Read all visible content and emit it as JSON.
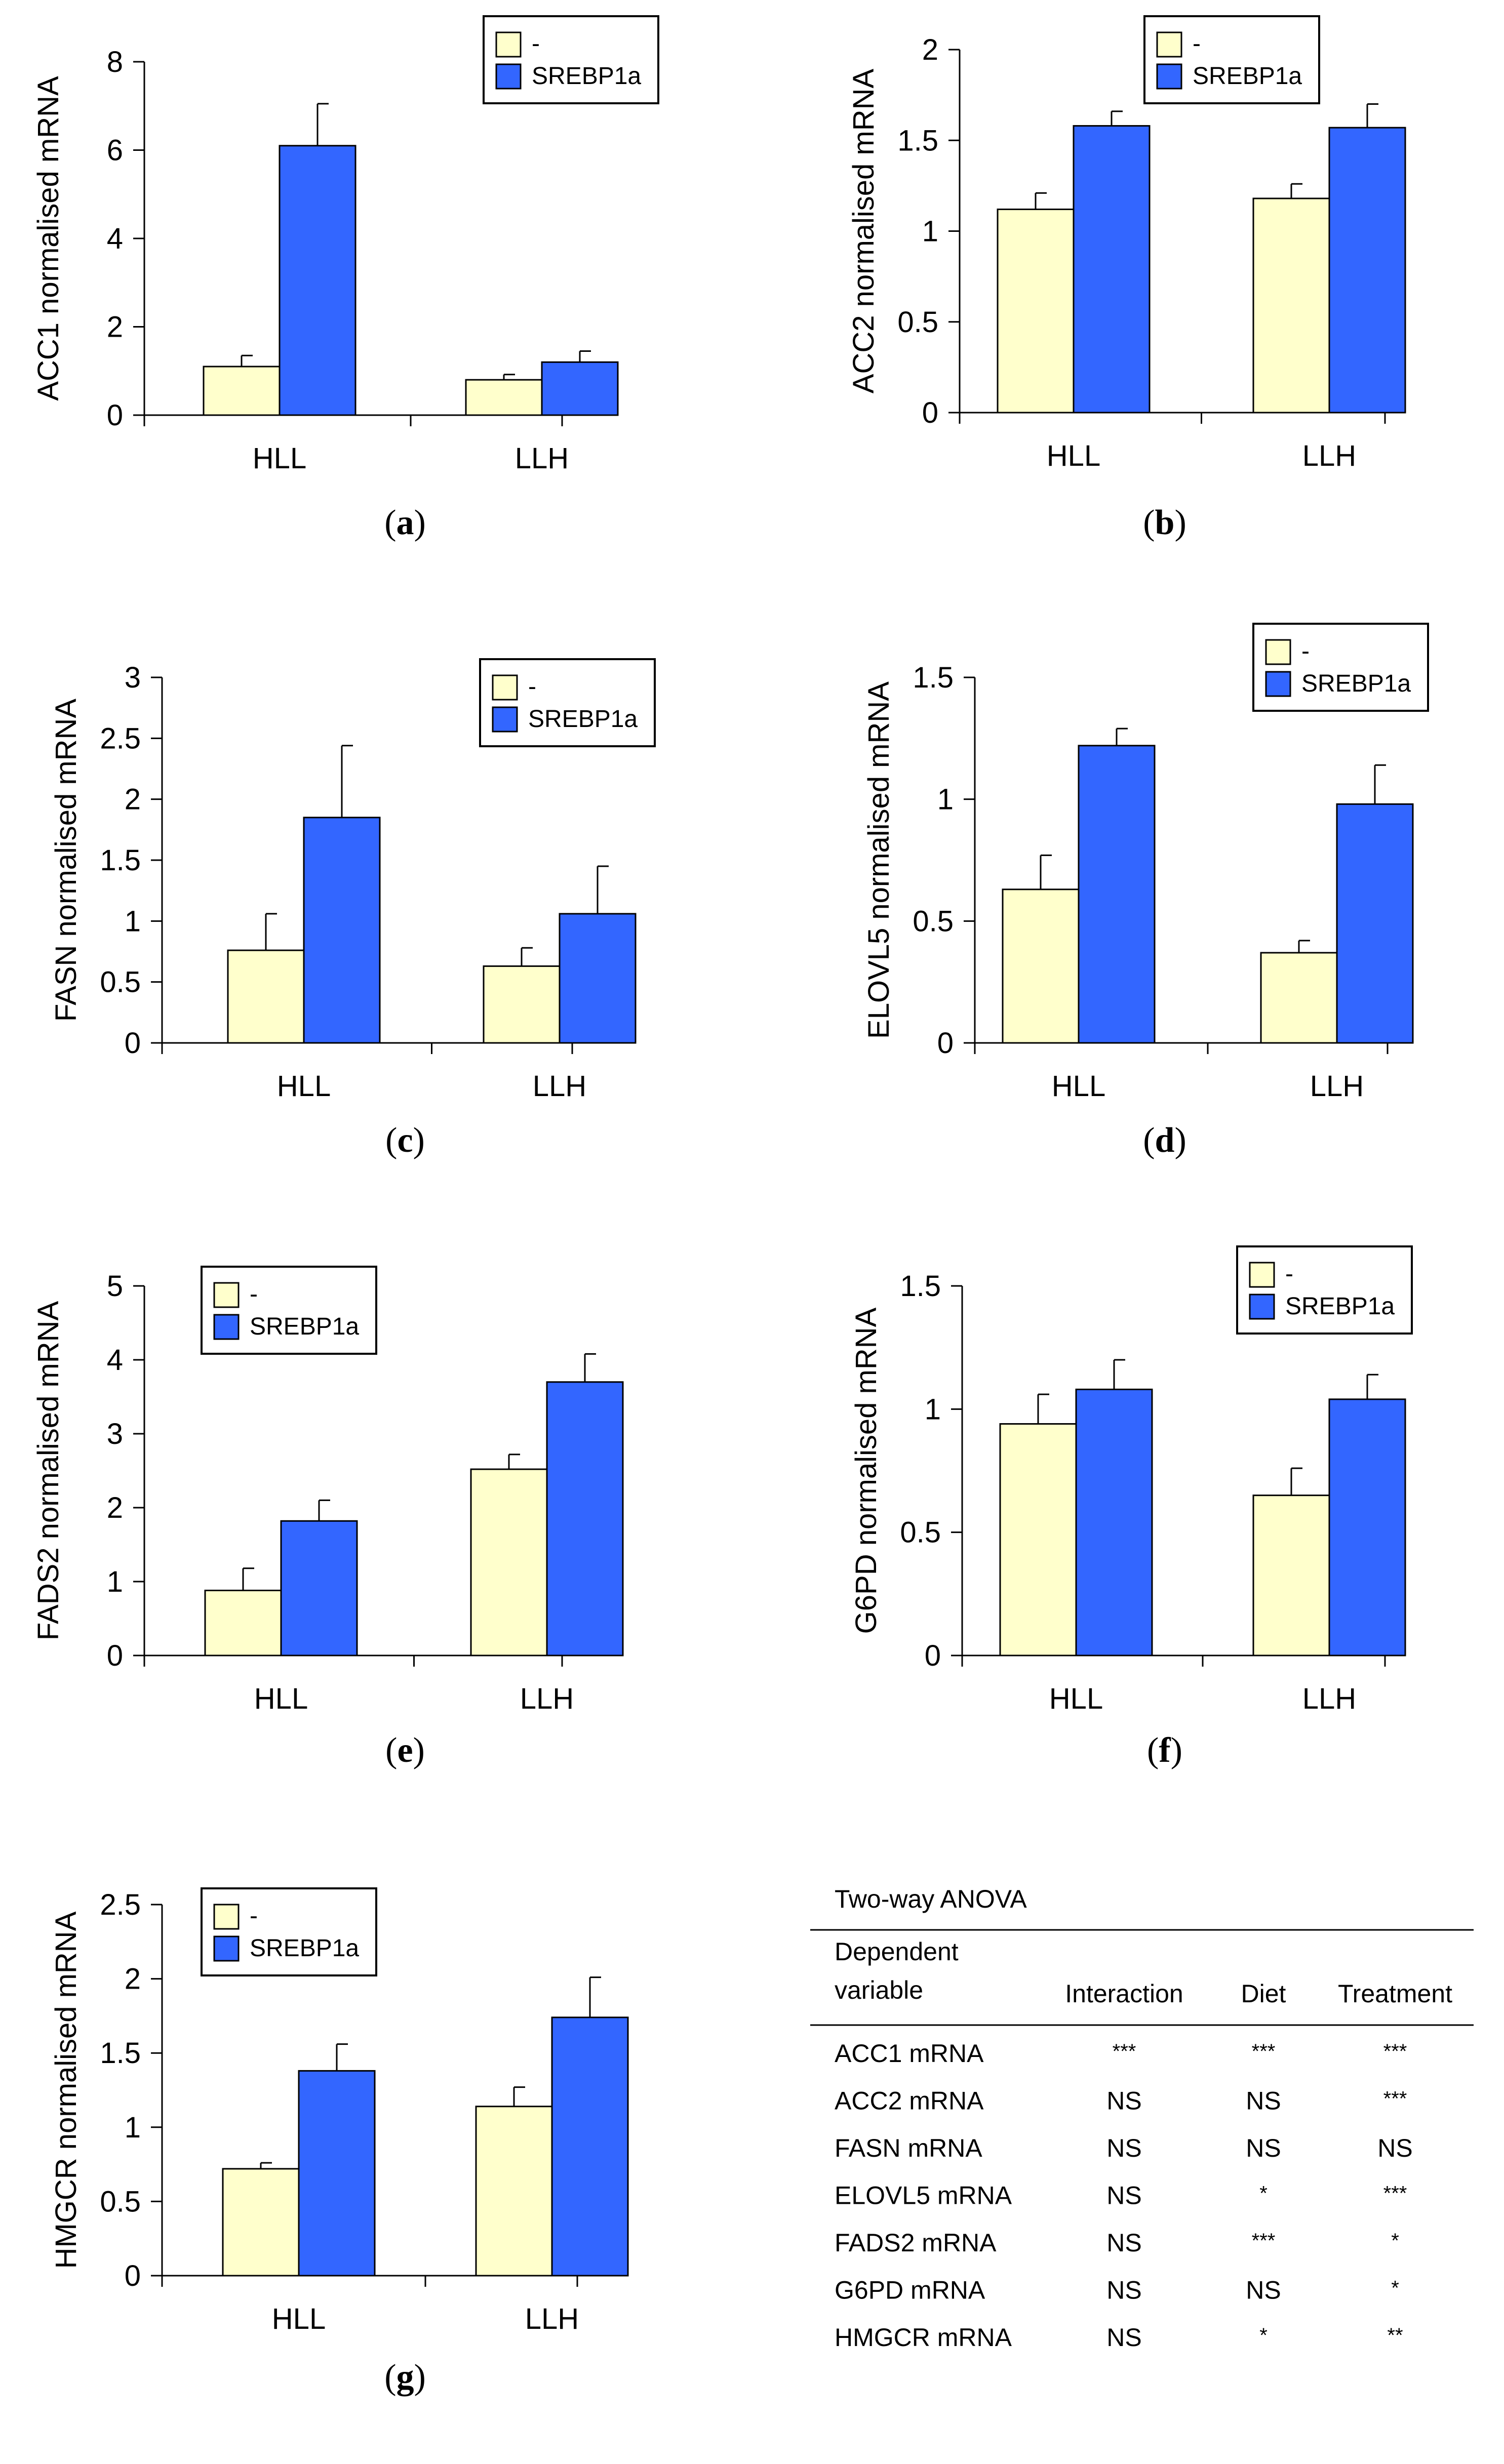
{
  "legend": {
    "control_label": "-",
    "treatment_label": "SREBP1a"
  },
  "colors": {
    "control": "#FFFFCC",
    "treatment": "#3366FF",
    "axis": "#000000"
  },
  "chart_data": [
    {
      "id": "a",
      "panel_label": "a",
      "type": "bar",
      "title": "",
      "ylabel": "ACC1 normalised mRNA",
      "xlabel": "",
      "categories": [
        "HLL",
        "LLH"
      ],
      "ylim": [
        0,
        8
      ],
      "yticks": [
        0,
        2,
        4,
        6,
        8
      ],
      "ytick_labels": [
        "0",
        "2",
        "4",
        "6",
        "8"
      ],
      "legend_position": "top-right",
      "series": [
        {
          "name": "-",
          "values": [
            1.1,
            0.8
          ],
          "errors": [
            0.25,
            0.12
          ]
        },
        {
          "name": "SREBP1a",
          "values": [
            6.1,
            1.2
          ],
          "errors": [
            0.95,
            0.25
          ]
        }
      ]
    },
    {
      "id": "b",
      "panel_label": "b",
      "type": "bar",
      "title": "",
      "ylabel": "ACC2 normalised mRNA",
      "xlabel": "",
      "categories": [
        "HLL",
        "LLH"
      ],
      "ylim": [
        0,
        2
      ],
      "yticks": [
        0,
        0.5,
        1,
        1.5,
        2
      ],
      "ytick_labels": [
        "0",
        "0.5",
        "1",
        "1.5",
        "2"
      ],
      "legend_position": "top-right",
      "series": [
        {
          "name": "-",
          "values": [
            1.12,
            1.18
          ],
          "errors": [
            0.09,
            0.08
          ]
        },
        {
          "name": "SREBP1a",
          "values": [
            1.58,
            1.57
          ],
          "errors": [
            0.08,
            0.13
          ]
        }
      ]
    },
    {
      "id": "c",
      "panel_label": "c",
      "type": "bar",
      "title": "",
      "ylabel": "FASN normalised mRNA",
      "xlabel": "",
      "categories": [
        "HLL",
        "LLH"
      ],
      "ylim": [
        0,
        3
      ],
      "yticks": [
        0,
        0.5,
        1,
        1.5,
        2,
        2.5,
        3
      ],
      "ytick_labels": [
        "0",
        "0.5",
        "1",
        "1.5",
        "2",
        "2.5",
        "3"
      ],
      "legend_position": "top-right",
      "series": [
        {
          "name": "-",
          "values": [
            0.76,
            0.63
          ],
          "errors": [
            0.3,
            0.15
          ]
        },
        {
          "name": "SREBP1a",
          "values": [
            1.85,
            1.06
          ],
          "errors": [
            0.59,
            0.39
          ]
        }
      ]
    },
    {
      "id": "d",
      "panel_label": "d",
      "type": "bar",
      "title": "",
      "ylabel": "ELOVL5 normalised mRNA",
      "xlabel": "",
      "categories": [
        "HLL",
        "LLH"
      ],
      "ylim": [
        0,
        1.5
      ],
      "yticks": [
        0,
        0.5,
        1,
        1.5
      ],
      "ytick_labels": [
        "0",
        "0.5",
        "1",
        "1.5"
      ],
      "legend_position": "top-right",
      "series": [
        {
          "name": "-",
          "values": [
            0.63,
            0.37
          ],
          "errors": [
            0.14,
            0.05
          ]
        },
        {
          "name": "SREBP1a",
          "values": [
            1.22,
            0.98
          ],
          "errors": [
            0.07,
            0.16
          ]
        }
      ]
    },
    {
      "id": "e",
      "panel_label": "e",
      "type": "bar",
      "title": "",
      "ylabel": "FADS2 normalised mRNA",
      "xlabel": "",
      "categories": [
        "HLL",
        "LLH"
      ],
      "ylim": [
        0,
        5
      ],
      "yticks": [
        0,
        1,
        2,
        3,
        4,
        5
      ],
      "ytick_labels": [
        "0",
        "1",
        "2",
        "3",
        "4",
        "5"
      ],
      "legend_position": "top-left",
      "series": [
        {
          "name": "-",
          "values": [
            0.88,
            2.52
          ],
          "errors": [
            0.3,
            0.2
          ]
        },
        {
          "name": "SREBP1a",
          "values": [
            1.82,
            3.7
          ],
          "errors": [
            0.28,
            0.38
          ]
        }
      ]
    },
    {
      "id": "f",
      "panel_label": "f",
      "type": "bar",
      "title": "",
      "ylabel": "G6PD normalised mRNA",
      "xlabel": "",
      "categories": [
        "HLL",
        "LLH"
      ],
      "ylim": [
        0,
        1.5
      ],
      "yticks": [
        0,
        0.5,
        1,
        1.5
      ],
      "ytick_labels": [
        "0",
        "0.5",
        "1",
        "1.5"
      ],
      "legend_position": "top-right",
      "series": [
        {
          "name": "-",
          "values": [
            0.94,
            0.65
          ],
          "errors": [
            0.12,
            0.11
          ]
        },
        {
          "name": "SREBP1a",
          "values": [
            1.08,
            1.04
          ],
          "errors": [
            0.12,
            0.1
          ]
        }
      ]
    },
    {
      "id": "g",
      "panel_label": "g",
      "type": "bar",
      "title": "",
      "ylabel": "HMGCR normalised mRNA",
      "xlabel": "",
      "categories": [
        "HLL",
        "LLH"
      ],
      "ylim": [
        0,
        2.5
      ],
      "yticks": [
        0,
        0.5,
        1,
        1.5,
        2,
        2.5
      ],
      "ytick_labels": [
        "0",
        "0.5",
        "1",
        "1.5",
        "2",
        "2.5"
      ],
      "legend_position": "top-left",
      "series": [
        {
          "name": "-",
          "values": [
            0.72,
            1.14
          ],
          "errors": [
            0.04,
            0.13
          ]
        },
        {
          "name": "SREBP1a",
          "values": [
            1.38,
            1.74
          ],
          "errors": [
            0.18,
            0.27
          ]
        }
      ]
    },
    {
      "id": "anova",
      "type": "table",
      "title": "Two-way ANOVA",
      "header_lines": [
        "Dependent",
        "variable"
      ],
      "columns": [
        "Interaction",
        "Diet",
        "Treatment"
      ],
      "rows": [
        {
          "label": "ACC1 mRNA",
          "values": [
            "***",
            "***",
            "***"
          ]
        },
        {
          "label": "ACC2 mRNA",
          "values": [
            "NS",
            "NS",
            "***"
          ]
        },
        {
          "label": "FASN mRNA",
          "values": [
            "NS",
            "NS",
            "NS"
          ]
        },
        {
          "label": "ELOVL5 mRNA",
          "values": [
            "NS",
            "*",
            "***"
          ]
        },
        {
          "label": "FADS2 mRNA",
          "values": [
            "NS",
            "***",
            "*"
          ]
        },
        {
          "label": "G6PD mRNA",
          "values": [
            "NS",
            "NS",
            "*"
          ]
        },
        {
          "label": "HMGCR mRNA",
          "values": [
            "NS",
            "*",
            "**"
          ]
        }
      ]
    }
  ]
}
